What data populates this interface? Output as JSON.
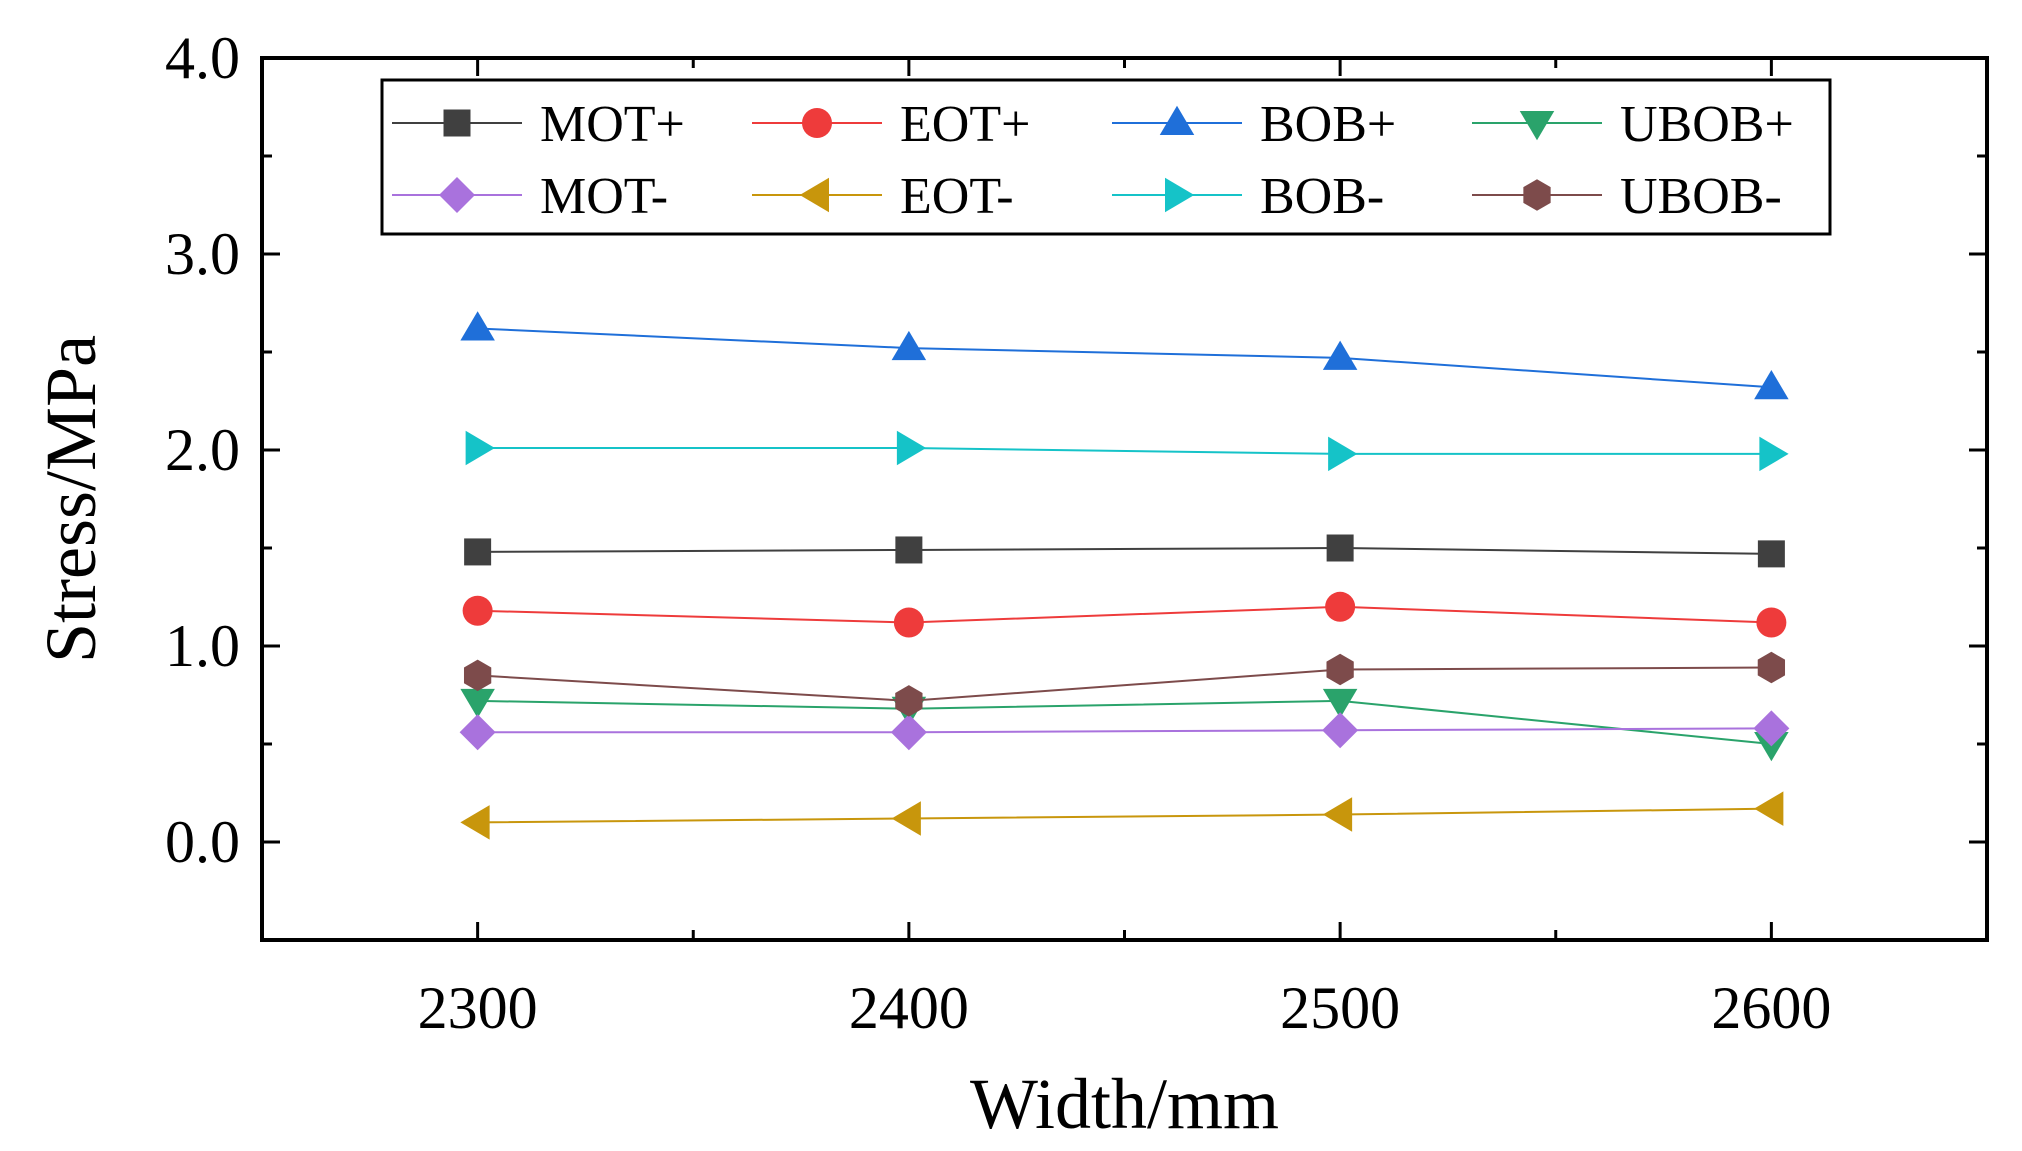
{
  "chart_data": {
    "type": "line",
    "title": "",
    "xlabel": "Width/mm",
    "ylabel": "Stress/MPa",
    "x": [
      2300,
      2400,
      2500,
      2600
    ],
    "xlim": [
      2250,
      2650
    ],
    "ylim": [
      -0.5,
      4.0
    ],
    "x_ticks": [
      "2300",
      "2400",
      "2500",
      "2600"
    ],
    "y_ticks": [
      "0.0",
      "1.0",
      "2.0",
      "3.0",
      "4.0"
    ],
    "grid": false,
    "legend_position": "top",
    "series": [
      {
        "name": "MOT+",
        "marker": "square",
        "color": "#404040",
        "values": [
          1.48,
          1.49,
          1.5,
          1.47
        ]
      },
      {
        "name": "EOT+",
        "marker": "circle",
        "color": "#ee3b3b",
        "values": [
          1.18,
          1.12,
          1.2,
          1.12
        ]
      },
      {
        "name": "BOB+",
        "marker": "triangle-up",
        "color": "#1f6fd9",
        "values": [
          2.62,
          2.52,
          2.47,
          2.32
        ]
      },
      {
        "name": "UBOB+",
        "marker": "triangle-down",
        "color": "#2aa36b",
        "values": [
          0.72,
          0.68,
          0.72,
          0.5
        ]
      },
      {
        "name": "MOT-",
        "marker": "diamond",
        "color": "#a972dd",
        "values": [
          0.56,
          0.56,
          0.57,
          0.58
        ]
      },
      {
        "name": "EOT-",
        "marker": "triangle-left",
        "color": "#c8960c",
        "values": [
          0.1,
          0.12,
          0.14,
          0.17
        ]
      },
      {
        "name": "BOB-",
        "marker": "triangle-right",
        "color": "#15c3c8",
        "values": [
          2.01,
          2.01,
          1.98,
          1.98
        ]
      },
      {
        "name": "UBOB-",
        "marker": "hexagon",
        "color": "#7d4b4b",
        "values": [
          0.85,
          0.72,
          0.88,
          0.89
        ]
      }
    ]
  }
}
